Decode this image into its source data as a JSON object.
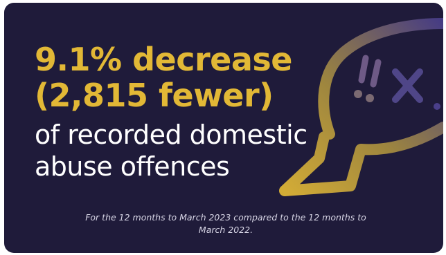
{
  "headline": {
    "line1": "9.1% decrease",
    "line2": "(2,815 fewer)"
  },
  "subline": {
    "line1": "of recorded domestic",
    "line2": "abuse offences"
  },
  "footnote": "For the 12 months to March 2023 compared to the 12 months to March 2022.",
  "colors": {
    "background": "#1f1b3a",
    "accent": "#e2b836",
    "bubble_start": "#e2b836",
    "bubble_end": "#4a3f8a",
    "text": "#ffffff"
  },
  "icons": [
    "speech-bubble-icon"
  ]
}
